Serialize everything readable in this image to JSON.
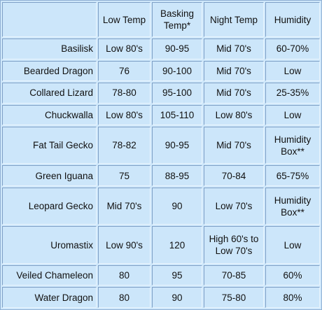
{
  "table": {
    "columns": [
      "Low Temp",
      "Basking Temp*",
      "Night Temp",
      "Humidity"
    ],
    "rows": [
      {
        "name": "Basilisk",
        "cells": [
          "Low 80's",
          "90-95",
          "Mid 70's",
          "60-70%"
        ]
      },
      {
        "name": "Bearded Dragon",
        "cells": [
          "76",
          "90-100",
          "Mid 70's",
          "Low"
        ]
      },
      {
        "name": "Collared Lizard",
        "cells": [
          "78-80",
          "95-100",
          "Mid 70's",
          "25-35%"
        ]
      },
      {
        "name": "Chuckwalla",
        "cells": [
          "Low 80's",
          "105-110",
          "Low 80's",
          "Low"
        ]
      },
      {
        "name": "Fat Tail Gecko",
        "cells": [
          "78-82",
          "90-95",
          "Mid 70's",
          "Humidity Box**"
        ]
      },
      {
        "name": "Green Iguana",
        "cells": [
          "75",
          "88-95",
          "70-84",
          "65-75%"
        ]
      },
      {
        "name": "Leopard Gecko",
        "cells": [
          "Mid 70's",
          "90",
          "Low 70's",
          "Humidity Box**"
        ]
      },
      {
        "name": "Uromastix",
        "cells": [
          "Low 90's",
          "120",
          "High 60's to Low 70's",
          "Low"
        ]
      },
      {
        "name": "Veiled Chameleon",
        "cells": [
          "80",
          "95",
          "70-85",
          "60%"
        ]
      },
      {
        "name": "Water Dragon",
        "cells": [
          "80",
          "90",
          "75-80",
          "80%"
        ]
      }
    ]
  }
}
